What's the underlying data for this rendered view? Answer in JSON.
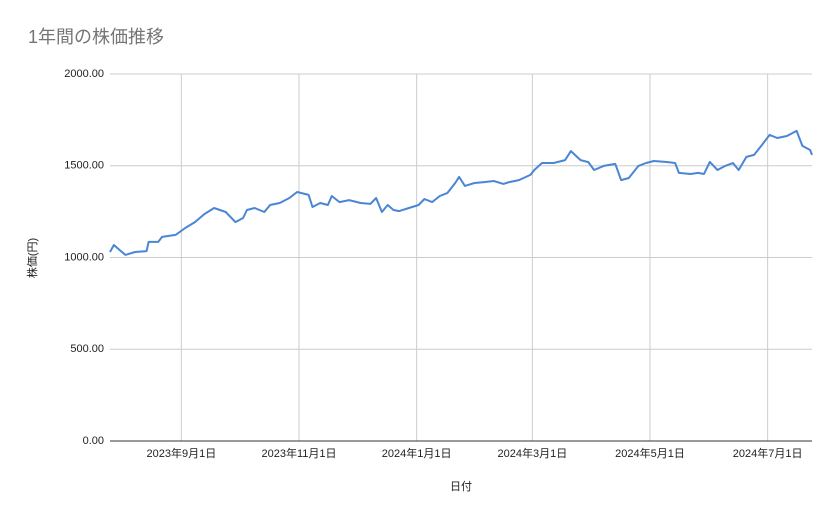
{
  "chart_data": {
    "type": "line",
    "title": "1年間の株価推移",
    "x_label": "日付",
    "y_label": "株価(円)",
    "x": [
      "2023-07-26",
      "2023-07-28",
      "2023-07-31",
      "2023-08-03",
      "2023-08-08",
      "2023-08-14",
      "2023-08-15",
      "2023-08-20",
      "2023-08-22",
      "2023-08-29",
      "2023-09-03",
      "2023-09-08",
      "2023-09-13",
      "2023-09-18",
      "2023-09-24",
      "2023-09-29",
      "2023-10-03",
      "2023-10-05",
      "2023-10-09",
      "2023-10-14",
      "2023-10-17",
      "2023-10-22",
      "2023-10-27",
      "2023-10-31",
      "2023-11-06",
      "2023-11-08",
      "2023-11-12",
      "2023-11-16",
      "2023-11-18",
      "2023-11-22",
      "2023-11-27",
      "2023-12-03",
      "2023-12-08",
      "2023-12-11",
      "2023-12-14",
      "2023-12-17",
      "2023-12-20",
      "2023-12-23",
      "2023-12-28",
      "2024-01-02",
      "2024-01-05",
      "2024-01-09",
      "2024-01-13",
      "2024-01-17",
      "2024-01-21",
      "2024-01-23",
      "2024-01-26",
      "2024-01-31",
      "2024-02-05",
      "2024-02-10",
      "2024-02-15",
      "2024-02-18",
      "2024-02-23",
      "2024-02-29",
      "2024-03-02",
      "2024-03-06",
      "2024-03-12",
      "2024-03-18",
      "2024-03-21",
      "2024-03-26",
      "2024-03-30",
      "2024-04-02",
      "2024-04-07",
      "2024-04-13",
      "2024-04-16",
      "2024-04-20",
      "2024-04-25",
      "2024-04-29",
      "2024-05-03",
      "2024-05-09",
      "2024-05-14",
      "2024-05-16",
      "2024-05-22",
      "2024-05-26",
      "2024-05-29",
      "2024-06-01",
      "2024-06-05",
      "2024-06-09",
      "2024-06-13",
      "2024-06-16",
      "2024-06-20",
      "2024-06-24",
      "2024-06-28",
      "2024-07-02",
      "2024-07-06",
      "2024-07-11",
      "2024-07-16",
      "2024-07-19",
      "2024-07-23",
      "2024-07-24"
    ],
    "series": [
      {
        "name": "株価",
        "color": "#4a86d4",
        "values": [
          1030,
          1068,
          1041,
          1014,
          1030,
          1035,
          1085,
          1085,
          1112,
          1123,
          1161,
          1193,
          1237,
          1270,
          1248,
          1193,
          1215,
          1259,
          1270,
          1248,
          1286,
          1297,
          1324,
          1357,
          1341,
          1275,
          1297,
          1286,
          1335,
          1302,
          1313,
          1297,
          1292,
          1324,
          1248,
          1286,
          1259,
          1253,
          1270,
          1286,
          1319,
          1302,
          1335,
          1352,
          1406,
          1439,
          1390,
          1406,
          1411,
          1417,
          1401,
          1411,
          1422,
          1450,
          1477,
          1515,
          1515,
          1531,
          1580,
          1531,
          1520,
          1477,
          1499,
          1510,
          1422,
          1433,
          1499,
          1515,
          1526,
          1521,
          1515,
          1461,
          1455,
          1461,
          1455,
          1521,
          1477,
          1499,
          1515,
          1477,
          1548,
          1559,
          1613,
          1668,
          1651,
          1662,
          1690,
          1608,
          1586,
          1559
        ]
      }
    ],
    "xlim": [
      "2023-07-26",
      "2024-07-24"
    ],
    "xticks": [
      {
        "value": "2023-09-01",
        "label": "2023年9月1日"
      },
      {
        "value": "2023-11-01",
        "label": "2023年11月1日"
      },
      {
        "value": "2024-01-01",
        "label": "2024年1月1日"
      },
      {
        "value": "2024-03-01",
        "label": "2024年3月1日"
      },
      {
        "value": "2024-05-01",
        "label": "2024年5月1日"
      },
      {
        "value": "2024-07-01",
        "label": "2024年7月1日"
      }
    ],
    "ylim": [
      0,
      2000
    ],
    "yticks": [
      {
        "value": 0,
        "label": "0.00"
      },
      {
        "value": 500,
        "label": "500.00"
      },
      {
        "value": 1000,
        "label": "1000.00"
      },
      {
        "value": 1500,
        "label": "1500.00"
      },
      {
        "value": 2000,
        "label": "2000.00"
      }
    ],
    "grid": true
  }
}
